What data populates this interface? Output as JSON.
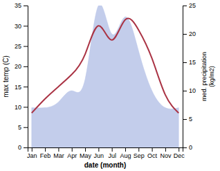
{
  "chart_data": {
    "type": "line",
    "categories": [
      "Jan",
      "Feb",
      "Mar",
      "Apr",
      "May",
      "Jun",
      "Jul",
      "Aug",
      "Sep",
      "Oct",
      "Nov",
      "Dec"
    ],
    "series": [
      {
        "type": "area",
        "axis": "y2",
        "color": "#b8c4e8",
        "values": [
          7.0,
          7.0,
          8.0,
          10.0,
          12.0,
          25.0,
          20.0,
          23.0,
          17.0,
          10.0,
          7.0,
          7.0
        ]
      },
      {
        "type": "line",
        "color": "#aa3344",
        "values": [
          8.5,
          12.0,
          15.0,
          18.0,
          23.0,
          30.0,
          26.5,
          31.5,
          29.0,
          22.0,
          13.0,
          8.5
        ]
      }
    ],
    "xlabel": "date (month)",
    "ylabel": "max temp (C)",
    "y2label": "med. precipitation\n(kg/m2)",
    "ylim": [
      0,
      35
    ],
    "yticks": [
      0,
      5,
      10,
      15,
      20,
      25,
      30,
      35
    ],
    "y2lim": [
      0,
      25
    ],
    "y2ticks": [
      0,
      5,
      10,
      15,
      20,
      25
    ],
    "grid": false
  }
}
